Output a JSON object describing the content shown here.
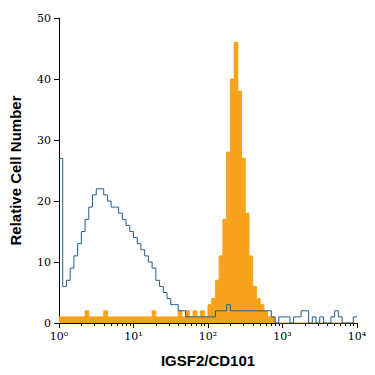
{
  "chart_data": {
    "type": "histogram",
    "x_label": "IGSF2/CD101",
    "y_label": "Relative Cell Number",
    "log": "x",
    "grid": false,
    "xlim": [
      1,
      10000
    ],
    "xticks": [
      {
        "value": 1,
        "label": "10⁰"
      },
      {
        "value": 10,
        "label": "10¹"
      },
      {
        "value": 100,
        "label": "10²"
      },
      {
        "value": 1000,
        "label": "10³"
      },
      {
        "value": 10000,
        "label": "10⁴"
      }
    ],
    "ylim": [
      0,
      50
    ],
    "yticks": [
      0,
      10,
      20,
      30,
      40,
      50
    ],
    "bins": [
      1,
      1.122,
      1.259,
      1.413,
      1.585,
      1.778,
      1.995,
      2.239,
      2.512,
      2.818,
      3.162,
      3.548,
      3.981,
      4.467,
      5.012,
      5.623,
      6.31,
      7.079,
      7.943,
      8.913,
      10,
      11.22,
      12.59,
      14.13,
      15.85,
      17.78,
      19.95,
      22.39,
      25.12,
      28.18,
      31.62,
      35.48,
      39.81,
      44.67,
      50.12,
      56.23,
      63.1,
      70.79,
      79.43,
      89.13,
      100,
      112.2,
      125.9,
      141.3,
      158.5,
      177.8,
      199.5,
      223.9,
      251.2,
      281.8,
      316.2,
      354.8,
      398.1,
      446.7,
      501.2,
      562.3,
      631,
      707.9,
      794.3,
      891.3,
      1000,
      1122,
      1259,
      1413,
      1585,
      1778,
      1995,
      2239,
      2512,
      2818,
      3162,
      3548,
      3981,
      4467,
      5012,
      5623,
      6310,
      7079,
      7943,
      8913,
      10000
    ],
    "series": [
      {
        "type": "line",
        "color": "#1f5f8b",
        "values": [
          27,
          6,
          7,
          9,
          11,
          13,
          15,
          17,
          19,
          21,
          22,
          22,
          21,
          20,
          19,
          19,
          18,
          17,
          16,
          15,
          14,
          13,
          12,
          11,
          10,
          9,
          7,
          6,
          5,
          4,
          3,
          3,
          2,
          2,
          1,
          1,
          1,
          1,
          1,
          1,
          1,
          1,
          2,
          2,
          2,
          3,
          2,
          2,
          2,
          2,
          2,
          2,
          2,
          2,
          2,
          2,
          2,
          1,
          0,
          1,
          1,
          1,
          0,
          1,
          1,
          2,
          2,
          0,
          1,
          0,
          1,
          0,
          0,
          1,
          2,
          1,
          0,
          0,
          0,
          1
        ]
      },
      {
        "type": "area",
        "color": "#f7a21b",
        "values": [
          1,
          1,
          1,
          1,
          1,
          1,
          1,
          2,
          1,
          1,
          1,
          1,
          2,
          1,
          1,
          1,
          1,
          1,
          1,
          1,
          1,
          1,
          1,
          1,
          1,
          2,
          1,
          1,
          1,
          1,
          1,
          1,
          2,
          1,
          2,
          1,
          2,
          1,
          2,
          1,
          3,
          4,
          7,
          11,
          17,
          28,
          40,
          46,
          38,
          27,
          18,
          11,
          6,
          4,
          3,
          2,
          1,
          1,
          0,
          0,
          0,
          0,
          0,
          0,
          0,
          0,
          0,
          0,
          0,
          0,
          0,
          0,
          0,
          0,
          0,
          0,
          0,
          0,
          0,
          0
        ]
      }
    ]
  }
}
